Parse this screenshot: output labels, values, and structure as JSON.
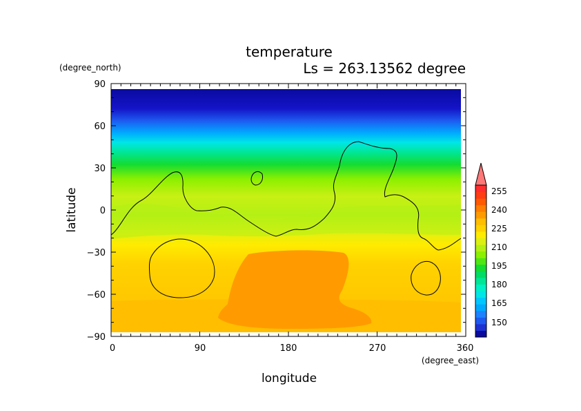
{
  "chart_data": {
    "type": "heatmap",
    "title": "temperature",
    "subtitle": "Ls = 263.13562 degree",
    "xlabel": "longitude",
    "ylabel": "latitude",
    "x_unit": "(degree_east)",
    "y_unit": "(degree_north)",
    "xlim": [
      0,
      360
    ],
    "ylim": [
      -90,
      90
    ],
    "x_ticks": [
      0,
      90,
      180,
      270,
      360
    ],
    "y_ticks": [
      90,
      60,
      30,
      0,
      -30,
      -60,
      -90
    ],
    "x_tick_labels": [
      "0",
      "90",
      "180",
      "270",
      "360"
    ],
    "y_tick_labels": [
      "90",
      "60",
      "30",
      "0",
      "−30",
      "−60",
      "−90"
    ],
    "colorbar": {
      "levels": [
        145,
        150,
        155,
        160,
        165,
        170,
        175,
        180,
        185,
        190,
        195,
        200,
        205,
        210,
        215,
        220,
        225,
        230,
        235,
        240,
        245,
        250,
        255,
        260
      ],
      "colors": [
        "#0a0aa0",
        "#1e32d2",
        "#1e5af0",
        "#1e82ff",
        "#00aaff",
        "#00c8ff",
        "#00e6e6",
        "#00f0c8",
        "#00e696",
        "#00dc64",
        "#14dc32",
        "#50e614",
        "#8cf000",
        "#b4f014",
        "#dcf014",
        "#ffeb00",
        "#ffd200",
        "#ffbe00",
        "#ff9b00",
        "#ff7d00",
        "#ff5a00",
        "#ff3c14",
        "#ff2d2d",
        "#ff7878"
      ],
      "labels": [
        "255",
        "240",
        "225",
        "210",
        "195",
        "180",
        "165",
        "150"
      ],
      "extend": "max"
    },
    "contour_note": "single black contour line over shaded field"
  }
}
